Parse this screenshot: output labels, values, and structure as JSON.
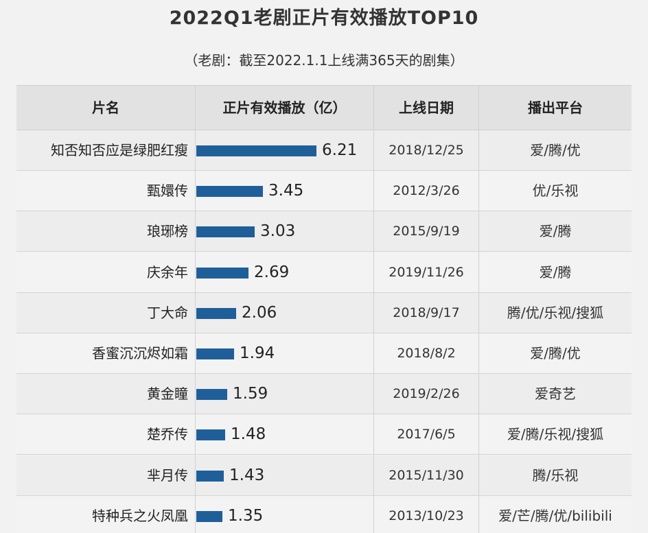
{
  "header": {
    "title": "2022Q1老剧正片有效播放TOP10",
    "subtitle": "（老剧：截至2022.1.1上线满365天的剧集）"
  },
  "columns": {
    "name": "片名",
    "plays": "正片有效播放（亿）",
    "date": "上线日期",
    "platform": "播出平台"
  },
  "rows": [
    {
      "name": "知否知否应是绿肥红瘦",
      "plays": "6.21",
      "date": "2018/12/25",
      "platform": "爱/腾/优"
    },
    {
      "name": "甄嬛传",
      "plays": "3.45",
      "date": "2012/3/26",
      "platform": "优/乐视"
    },
    {
      "name": "琅琊榜",
      "plays": "3.03",
      "date": "2015/9/19",
      "platform": "爱/腾"
    },
    {
      "name": "庆余年",
      "plays": "2.69",
      "date": "2019/11/26",
      "platform": "爱/腾"
    },
    {
      "name": "丁大命",
      "plays": "2.06",
      "date": "2018/9/17",
      "platform": "腾/优/乐视/搜狐"
    },
    {
      "name": "香蜜沉沉烬如霜",
      "plays": "1.94",
      "date": "2018/8/2",
      "platform": "爱/腾/优"
    },
    {
      "name": "黄金瞳",
      "plays": "1.59",
      "date": "2019/2/26",
      "platform": "爱奇艺"
    },
    {
      "name": "楚乔传",
      "plays": "1.48",
      "date": "2017/6/5",
      "platform": "爱/腾/乐视/搜狐"
    },
    {
      "name": "芈月传",
      "plays": "1.43",
      "date": "2015/11/30",
      "platform": "腾/乐视"
    },
    {
      "name": "特种兵之火凤凰",
      "plays": "1.35",
      "date": "2013/10/23",
      "platform": "爱/芒/腾/优/bilibili"
    }
  ],
  "chart_data": {
    "type": "bar",
    "orientation": "horizontal",
    "title": "2022Q1老剧正片有效播放TOP10",
    "categories": [
      "知否知否应是绿肥红瘦",
      "甄嬛传",
      "琅琊榜",
      "庆余年",
      "丁大命",
      "香蜜沉沉烬如霜",
      "黄金瞳",
      "楚乔传",
      "芈月传",
      "特种兵之火凤凰"
    ],
    "values": [
      6.21,
      3.45,
      3.03,
      2.69,
      2.06,
      1.94,
      1.59,
      1.48,
      1.43,
      1.35
    ],
    "xlabel": "正片有效播放（亿）",
    "bar_color": "#1f5f99"
  }
}
